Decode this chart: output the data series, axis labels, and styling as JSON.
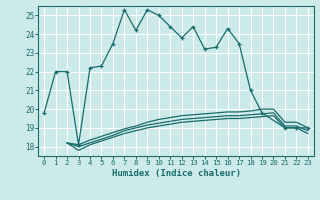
{
  "xlabel": "Humidex (Indice chaleur)",
  "bg_color": "#cceaea",
  "grid_color": "#ffffff",
  "line_color": "#1a6b6b",
  "xlim": [
    -0.5,
    23.5
  ],
  "ylim": [
    17.5,
    25.5
  ],
  "yticks": [
    18,
    19,
    20,
    21,
    22,
    23,
    24,
    25
  ],
  "xticks": [
    0,
    1,
    2,
    3,
    4,
    5,
    6,
    7,
    8,
    9,
    10,
    11,
    12,
    13,
    14,
    15,
    16,
    17,
    18,
    19,
    20,
    21,
    22,
    23
  ],
  "main_line": {
    "x": [
      0,
      1,
      2,
      3,
      4,
      5,
      6,
      7,
      8,
      9,
      10,
      11,
      12,
      13,
      14,
      15,
      16,
      17,
      18,
      19,
      21,
      22,
      23
    ],
    "y": [
      19.8,
      22.0,
      22.0,
      18.1,
      22.2,
      22.3,
      23.5,
      25.3,
      24.2,
      25.3,
      25.0,
      24.4,
      23.8,
      24.4,
      23.2,
      23.3,
      24.3,
      23.5,
      21.0,
      19.8,
      19.0,
      19.0,
      19.0
    ]
  },
  "lower_lines": [
    {
      "x": [
        2,
        3,
        4,
        5,
        6,
        7,
        8,
        9,
        10,
        11,
        12,
        13,
        14,
        15,
        16,
        17,
        18,
        19,
        20,
        21,
        22,
        23
      ],
      "y": [
        18.2,
        17.8,
        18.1,
        18.3,
        18.5,
        18.7,
        18.85,
        19.0,
        19.1,
        19.2,
        19.3,
        19.35,
        19.4,
        19.45,
        19.5,
        19.5,
        19.55,
        19.6,
        19.65,
        19.0,
        19.0,
        18.7
      ]
    },
    {
      "x": [
        2,
        3,
        4,
        5,
        6,
        7,
        8,
        9,
        10,
        11,
        12,
        13,
        14,
        15,
        16,
        17,
        18,
        19,
        20,
        21,
        22,
        23
      ],
      "y": [
        18.2,
        18.0,
        18.2,
        18.4,
        18.6,
        18.85,
        19.0,
        19.15,
        19.25,
        19.35,
        19.45,
        19.5,
        19.55,
        19.6,
        19.65,
        19.65,
        19.7,
        19.75,
        19.8,
        19.1,
        19.1,
        18.85
      ]
    },
    {
      "x": [
        2,
        3,
        4,
        5,
        6,
        7,
        8,
        9,
        10,
        11,
        12,
        13,
        14,
        15,
        16,
        17,
        18,
        19,
        20,
        21,
        22,
        23
      ],
      "y": [
        18.2,
        18.1,
        18.35,
        18.55,
        18.75,
        18.95,
        19.1,
        19.3,
        19.45,
        19.55,
        19.65,
        19.7,
        19.75,
        19.8,
        19.85,
        19.85,
        19.9,
        20.0,
        20.0,
        19.3,
        19.3,
        19.0
      ]
    }
  ]
}
